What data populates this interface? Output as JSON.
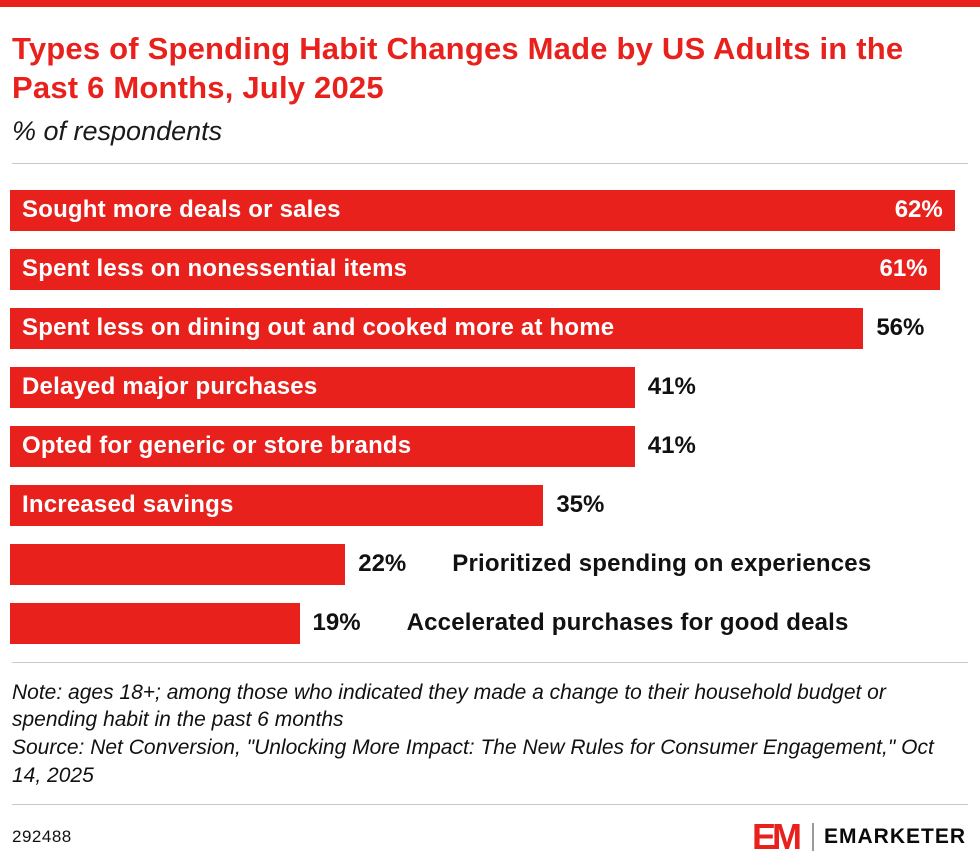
{
  "meta": {
    "accent_color": "#e8211d",
    "bar_color": "#e8211d",
    "title_color": "#e8211d",
    "text_color": "#111111"
  },
  "header": {
    "title": "Types of Spending Habit Changes Made by US Adults in the Past 6 Months, July 2025",
    "subtitle": "% of respondents"
  },
  "chart_data": {
    "type": "bar",
    "orientation": "horizontal",
    "unit": "%",
    "xlim": [
      0,
      63
    ],
    "grid": false,
    "legend": false,
    "title": "Types of Spending Habit Changes Made by US Adults in the Past 6 Months, July 2025",
    "subtitle": "% of respondents",
    "categories": [
      "Sought more deals or sales",
      "Spent less on nonessential items",
      "Spent less on dining out and cooked more at home",
      "Delayed major purchases",
      "Opted for generic or store brands",
      "Increased savings",
      "Prioritized spending on experiences",
      "Accelerated purchases for good deals"
    ],
    "values": [
      62,
      61,
      56,
      41,
      41,
      35,
      22,
      19
    ],
    "bars": [
      {
        "label": "Sought more deals or sales",
        "value": 62,
        "value_display": "62%",
        "value_inside": true,
        "label_inside": true
      },
      {
        "label": "Spent less on nonessential items",
        "value": 61,
        "value_display": "61%",
        "value_inside": true,
        "label_inside": true
      },
      {
        "label": "Spent less on dining out and cooked more at home",
        "value": 56,
        "value_display": "56%",
        "value_inside": false,
        "label_inside": true
      },
      {
        "label": "Delayed major purchases",
        "value": 41,
        "value_display": "41%",
        "value_inside": false,
        "label_inside": true
      },
      {
        "label": "Opted for generic or store brands",
        "value": 41,
        "value_display": "41%",
        "value_inside": false,
        "label_inside": true
      },
      {
        "label": "Increased savings",
        "value": 35,
        "value_display": "35%",
        "value_inside": false,
        "label_inside": true
      },
      {
        "label": "Prioritized spending on experiences",
        "value": 22,
        "value_display": "22%",
        "value_inside": false,
        "label_inside": false
      },
      {
        "label": "Accelerated purchases for good deals",
        "value": 19,
        "value_display": "19%",
        "value_inside": false,
        "label_inside": false
      }
    ]
  },
  "footnote": {
    "note": "Note: ages 18+; among those who indicated they made a change to their household budget or spending habit in the past 6 months",
    "source": "Source: Net Conversion, \"Unlocking More Impact: The New Rules for Consumer Engagement,\" Oct 14, 2025"
  },
  "footer": {
    "chart_id": "292488",
    "logo_em": "EM",
    "logo_text": "EMARKETER"
  }
}
